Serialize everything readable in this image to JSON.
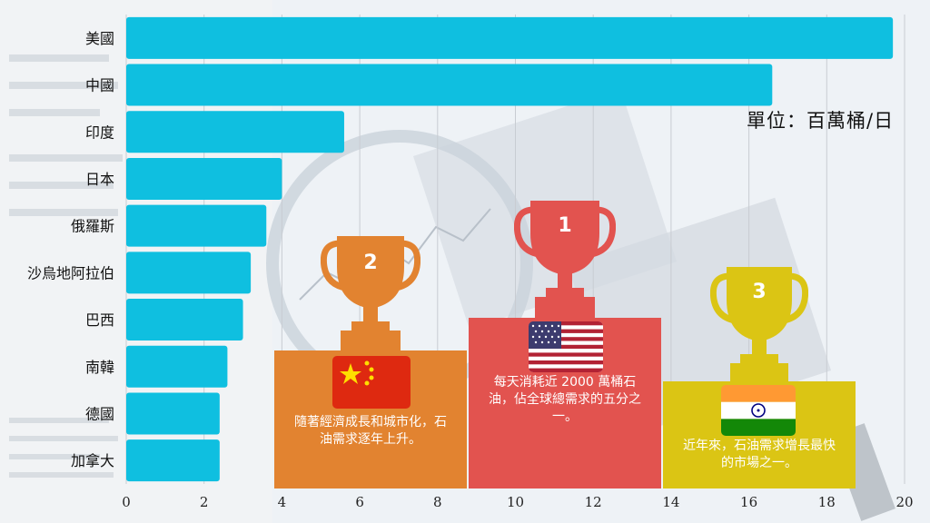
{
  "chart_data": {
    "type": "bar",
    "orientation": "horizontal",
    "categories": [
      "美國",
      "中國",
      "印度",
      "日本",
      "俄羅斯",
      "沙烏地阿拉伯",
      "巴西",
      "南韓",
      "德國",
      "加拿大"
    ],
    "values": [
      19.7,
      16.6,
      5.6,
      4.0,
      3.6,
      3.2,
      3.0,
      2.6,
      2.4,
      2.4
    ],
    "xlim": [
      0,
      20
    ],
    "xticks": [
      0,
      2,
      4,
      6,
      8,
      10,
      12,
      14,
      16,
      18,
      20
    ],
    "bar_color": "#0fbfe0",
    "grid": true
  },
  "unit_label": "單位：百萬桶/日",
  "podiums": [
    {
      "rank": "1",
      "caption": "每天消耗近 2000 萬桶石油，佔全球總需求的五分之一。",
      "color": "#e2534f",
      "flag": "usa-flag"
    },
    {
      "rank": "2",
      "caption": "隨著經濟成長和城市化，石油需求逐年上升。",
      "color": "#e28330",
      "flag": "china-flag"
    },
    {
      "rank": "3",
      "caption": "近年來，石油需求增長最快的市場之一。",
      "color": "#dbc514",
      "flag": "india-flag"
    }
  ],
  "colors": {
    "gold": "#e2534f",
    "silver": "#e28330",
    "bronze": "#dbc514"
  }
}
